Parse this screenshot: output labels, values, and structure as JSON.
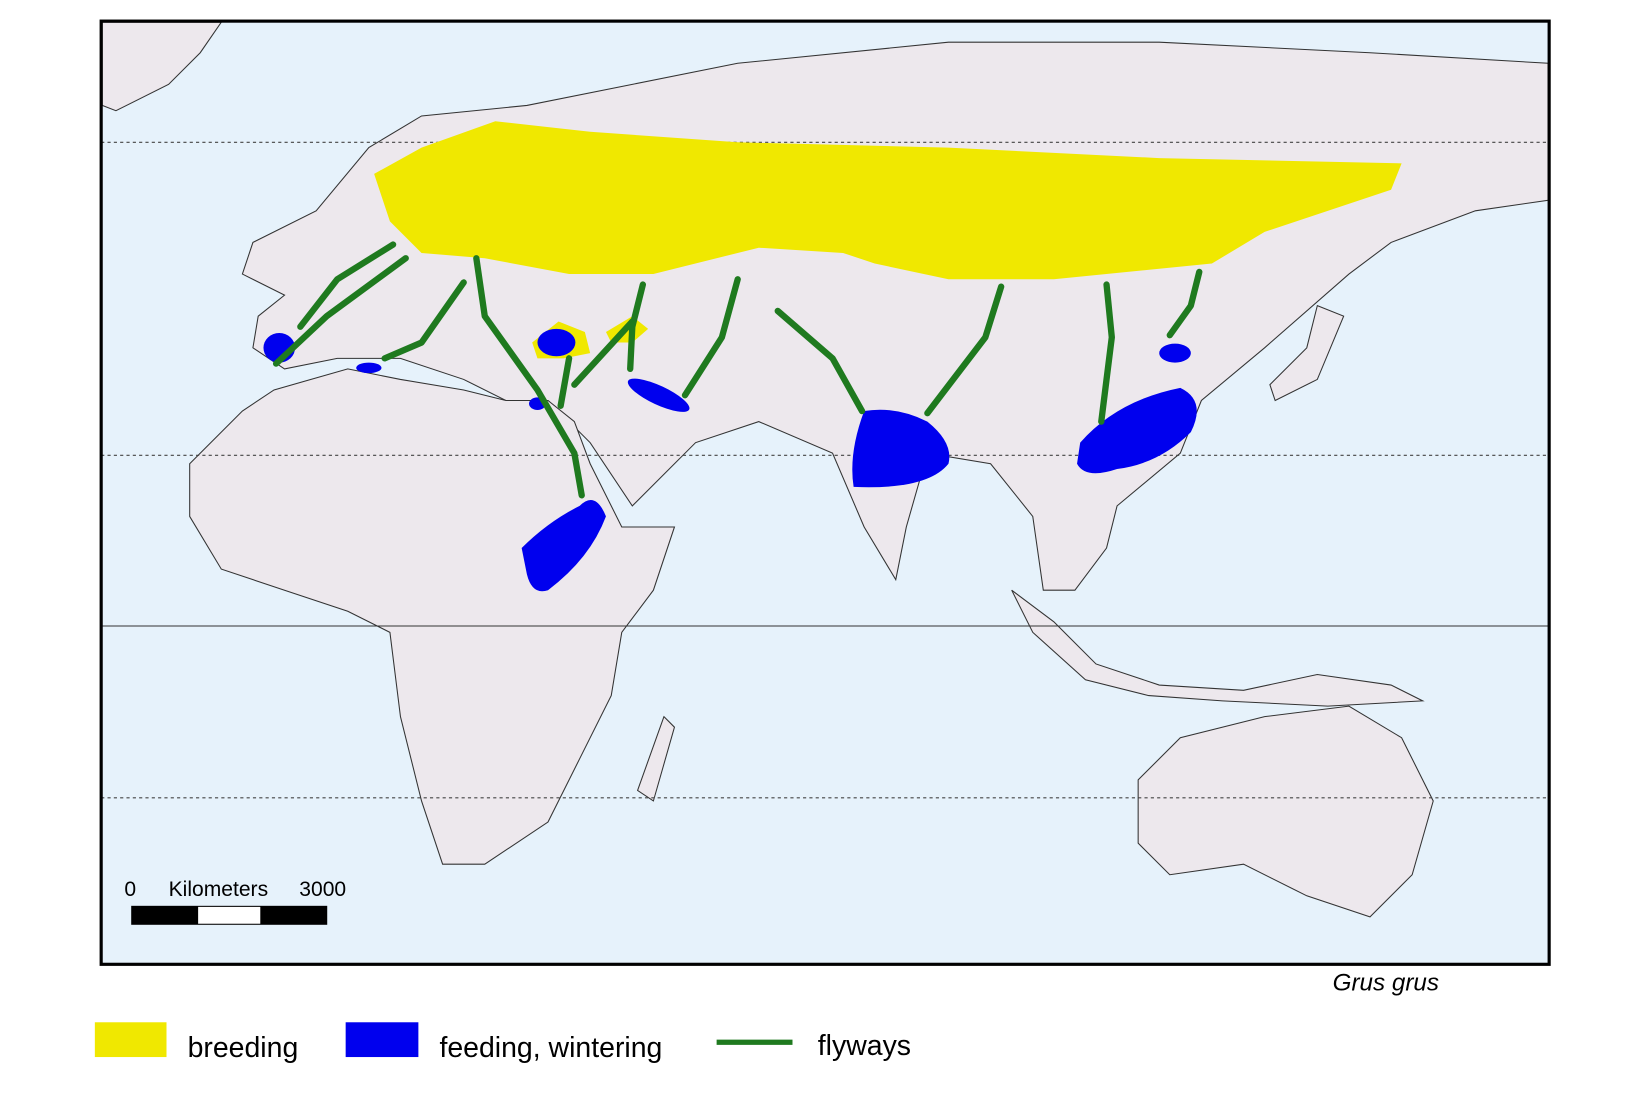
{
  "map": {
    "scale_bar": {
      "start": "0",
      "unit": "Kilometers",
      "end": "3000"
    },
    "species": "Grus grus",
    "legend": [
      {
        "label": "breeding"
      },
      {
        "label": "feeding, wintering"
      },
      {
        "label": "flyways"
      }
    ]
  }
}
